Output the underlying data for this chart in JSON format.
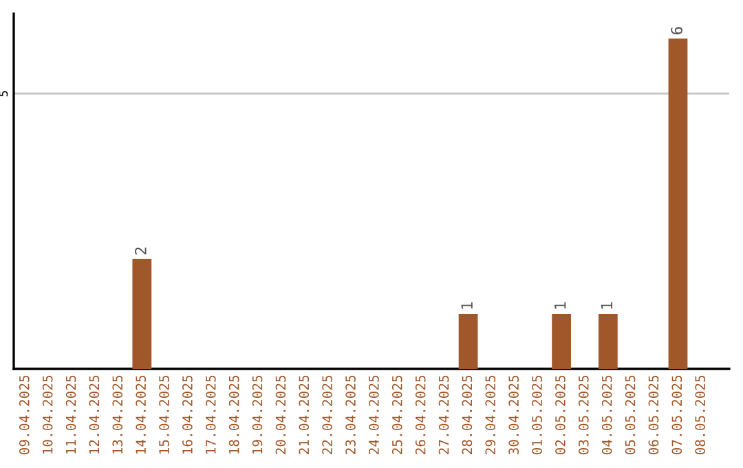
{
  "chart_data": {
    "type": "bar",
    "categories": [
      "09.04.2025",
      "10.04.2025",
      "11.04.2025",
      "12.04.2025",
      "13.04.2025",
      "14.04.2025",
      "15.04.2025",
      "16.04.2025",
      "17.04.2025",
      "18.04.2025",
      "19.04.2025",
      "20.04.2025",
      "21.04.2025",
      "22.04.2025",
      "23.04.2025",
      "24.04.2025",
      "25.04.2025",
      "26.04.2025",
      "27.04.2025",
      "28.04.2025",
      "29.04.2025",
      "30.04.2025",
      "01.05.2025",
      "02.05.2025",
      "03.05.2025",
      "04.05.2025",
      "05.05.2025",
      "06.05.2025",
      "07.05.2025",
      "08.05.2025"
    ],
    "values": [
      0,
      0,
      0,
      0,
      0,
      2,
      0,
      0,
      0,
      0,
      0,
      0,
      0,
      0,
      0,
      0,
      0,
      0,
      0,
      1,
      0,
      0,
      0,
      1,
      0,
      1,
      0,
      0,
      6,
      0
    ],
    "value_labels": [
      null,
      null,
      null,
      null,
      null,
      "2",
      null,
      null,
      null,
      null,
      null,
      null,
      null,
      null,
      null,
      null,
      null,
      null,
      null,
      "1",
      null,
      null,
      null,
      "1",
      null,
      "1",
      null,
      null,
      "6",
      null
    ],
    "color": "#a0582a",
    "ylim": [
      0,
      6.45
    ],
    "yticks": [
      5
    ],
    "grid": "y",
    "legend": false
  }
}
